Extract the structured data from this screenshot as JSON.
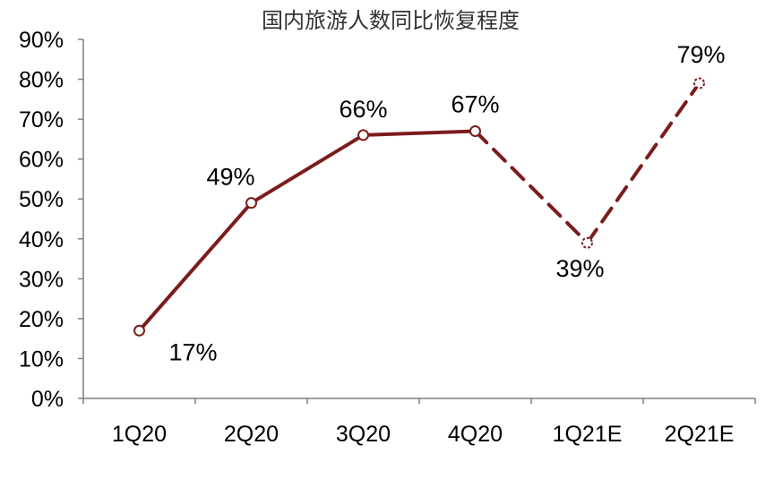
{
  "chart_data": {
    "type": "line",
    "title": "国内旅游人数同比恢复程度",
    "categories": [
      "1Q20",
      "2Q20",
      "3Q20",
      "4Q20",
      "1Q21E",
      "2Q21E"
    ],
    "values": [
      17,
      49,
      66,
      67,
      39,
      79
    ],
    "data_labels": [
      "17%",
      "49%",
      "66%",
      "67%",
      "39%",
      "79%"
    ],
    "estimated_points": [
      "1Q21E",
      "2Q21E"
    ],
    "y_ticks": [
      "0%",
      "10%",
      "20%",
      "30%",
      "40%",
      "50%",
      "60%",
      "70%",
      "80%",
      "90%"
    ],
    "ylim": [
      0,
      90
    ],
    "ytick_step": 10,
    "grid": false,
    "line_style": {
      "actual": "solid",
      "estimate": "dashed"
    },
    "colors": {
      "line": "#7b1c1c",
      "axis": "#7f7f7f"
    }
  }
}
